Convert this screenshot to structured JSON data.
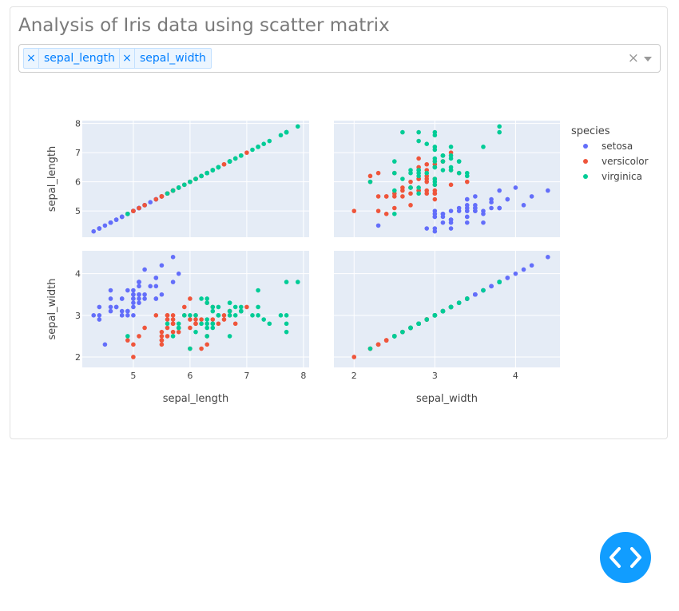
{
  "page": {
    "title": "Analysis of Iris data using scatter matrix"
  },
  "dropdown": {
    "selected": [
      {
        "remove_icon": "×",
        "label": "sepal_length"
      },
      {
        "remove_icon": "×",
        "label": "sepal_width"
      }
    ],
    "clear_icon": "×"
  },
  "fab": {
    "icon": "code-icon"
  },
  "colors": {
    "setosa": "#636efa",
    "versicolor": "#EF553B",
    "virginica": "#00cc96",
    "plot_bg": "#E5ECF6"
  },
  "chart_data": {
    "type": "scatter",
    "title": "",
    "legend": {
      "title": "species",
      "entries": [
        "setosa",
        "versicolor",
        "virginica"
      ],
      "placement": "right"
    },
    "dimensions": [
      "sepal_length",
      "sepal_width"
    ],
    "axes": {
      "sepal_length": {
        "label": "sepal_length",
        "range": [
          4.1,
          8.1
        ],
        "ticks": [
          5,
          6,
          7,
          8
        ]
      },
      "sepal_width": {
        "label": "sepal_width",
        "range": [
          1.75,
          4.55
        ],
        "ticks": [
          2,
          3,
          4
        ]
      }
    },
    "series": [
      {
        "name": "setosa",
        "sepal_length": [
          5.1,
          4.9,
          4.7,
          4.6,
          5.0,
          5.4,
          4.6,
          5.0,
          4.4,
          4.9,
          5.4,
          4.8,
          4.8,
          4.3,
          5.8,
          5.7,
          5.4,
          5.1,
          5.7,
          5.1,
          5.4,
          5.1,
          4.6,
          5.1,
          4.8,
          5.0,
          5.0,
          5.2,
          5.2,
          4.7,
          4.8,
          5.4,
          5.2,
          5.5,
          4.9,
          5.0,
          5.5,
          4.9,
          4.4,
          5.1,
          5.0,
          4.5,
          4.4,
          5.0,
          5.1,
          4.8,
          5.1,
          4.6,
          5.3,
          5.0
        ],
        "sepal_width": [
          3.5,
          3.0,
          3.2,
          3.1,
          3.6,
          3.9,
          3.4,
          3.4,
          2.9,
          3.1,
          3.7,
          3.4,
          3.0,
          3.0,
          4.0,
          4.4,
          3.9,
          3.5,
          3.8,
          3.8,
          3.4,
          3.7,
          3.6,
          3.3,
          3.4,
          3.0,
          3.4,
          3.5,
          3.4,
          3.2,
          3.1,
          3.4,
          4.1,
          4.2,
          3.1,
          3.2,
          3.5,
          3.6,
          3.0,
          3.4,
          3.5,
          2.3,
          3.2,
          3.5,
          3.8,
          3.0,
          3.8,
          3.2,
          3.7,
          3.3
        ]
      },
      {
        "name": "versicolor",
        "sepal_length": [
          7.0,
          6.4,
          6.9,
          5.5,
          6.5,
          5.7,
          6.3,
          4.9,
          6.6,
          5.2,
          5.0,
          5.9,
          6.0,
          6.1,
          5.6,
          6.7,
          5.6,
          5.8,
          6.2,
          5.6,
          5.9,
          6.1,
          6.3,
          6.1,
          6.4,
          6.6,
          6.8,
          6.7,
          6.0,
          5.7,
          5.5,
          5.5,
          5.8,
          6.0,
          5.4,
          6.0,
          6.7,
          6.3,
          5.6,
          5.5,
          5.5,
          6.1,
          5.8,
          5.0,
          5.6,
          5.7,
          5.7,
          6.2,
          5.1,
          5.7
        ],
        "sepal_width": [
          3.2,
          3.2,
          3.1,
          2.3,
          2.8,
          2.8,
          3.3,
          2.4,
          2.9,
          2.7,
          2.0,
          3.0,
          2.2,
          2.9,
          2.9,
          3.1,
          3.0,
          2.7,
          2.2,
          2.5,
          3.2,
          2.8,
          2.5,
          2.8,
          2.9,
          3.0,
          2.8,
          3.0,
          2.9,
          2.6,
          2.4,
          2.4,
          2.7,
          2.7,
          3.0,
          3.4,
          3.1,
          2.3,
          3.0,
          2.5,
          2.6,
          3.0,
          2.6,
          2.3,
          2.7,
          3.0,
          2.9,
          2.9,
          2.5,
          2.8
        ]
      },
      {
        "name": "virginica",
        "sepal_length": [
          6.3,
          5.8,
          7.1,
          6.3,
          6.5,
          7.6,
          4.9,
          7.3,
          6.7,
          7.2,
          6.5,
          6.4,
          6.8,
          5.7,
          5.8,
          6.4,
          6.5,
          7.7,
          7.7,
          6.0,
          6.9,
          5.6,
          7.7,
          6.3,
          6.7,
          7.2,
          6.2,
          6.1,
          6.4,
          7.2,
          7.4,
          7.9,
          6.4,
          6.3,
          6.1,
          7.7,
          6.3,
          6.4,
          6.0,
          6.9,
          6.7,
          6.9,
          5.8,
          6.8,
          6.7,
          6.7,
          6.3,
          6.5,
          6.2,
          5.9
        ],
        "sepal_width": [
          3.3,
          2.7,
          3.0,
          2.9,
          3.0,
          3.0,
          2.5,
          2.9,
          2.5,
          3.6,
          3.2,
          2.7,
          3.0,
          2.5,
          2.8,
          3.2,
          3.0,
          3.8,
          2.6,
          2.2,
          3.2,
          2.8,
          2.8,
          2.7,
          3.3,
          3.2,
          2.8,
          3.0,
          2.8,
          3.0,
          2.8,
          3.8,
          2.8,
          2.8,
          2.6,
          3.0,
          3.4,
          3.1,
          3.0,
          3.1,
          3.1,
          3.1,
          2.7,
          3.2,
          3.3,
          3.0,
          2.5,
          3.0,
          3.4,
          3.0
        ]
      }
    ]
  }
}
